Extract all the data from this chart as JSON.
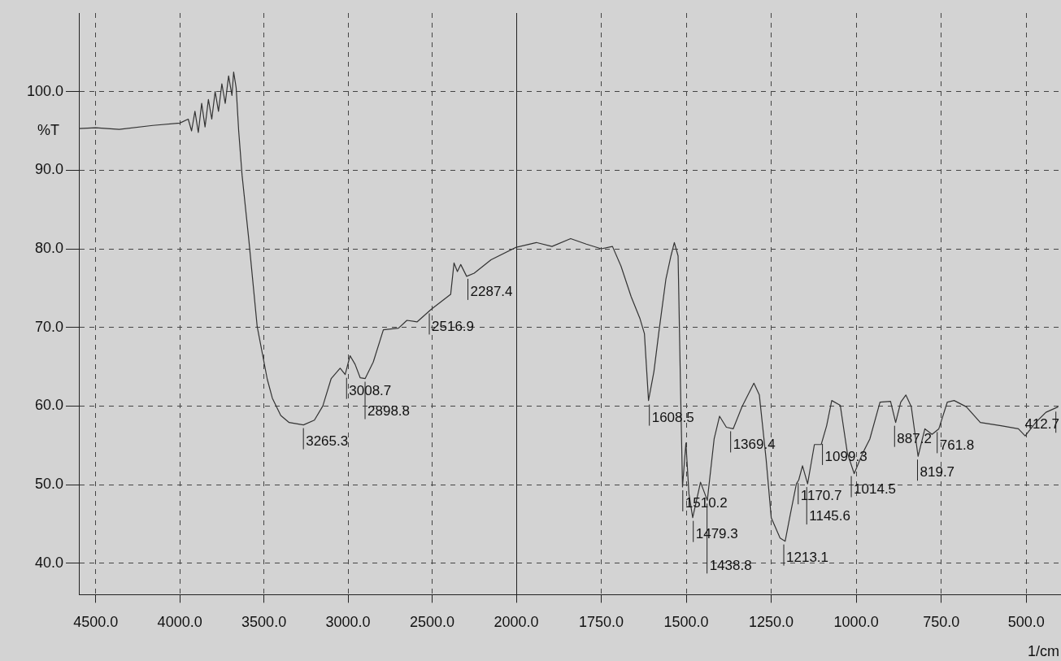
{
  "chart_data": [
    {
      "type": "line",
      "ylabel": "%T",
      "grid": true,
      "legend": false,
      "marker": "none",
      "line_style": "solid",
      "xlim": [
        4600,
        2000
      ],
      "ylim": [
        36,
        110
      ],
      "xticks": [
        {
          "value": 4500,
          "label": "4500.0"
        },
        {
          "value": 4000,
          "label": "4000.0"
        },
        {
          "value": 3500,
          "label": "3500.0"
        },
        {
          "value": 3000,
          "label": "3000.0"
        },
        {
          "value": 2500,
          "label": "2500.0"
        },
        {
          "value": 2000,
          "label": "2000.0"
        }
      ],
      "yticks": [
        {
          "value": 40,
          "label": "40.0"
        },
        {
          "value": 50,
          "label": "50.0"
        },
        {
          "value": 60,
          "label": "60.0"
        },
        {
          "value": 70,
          "label": "70.0"
        },
        {
          "value": 80,
          "label": "80.0"
        },
        {
          "value": 90,
          "label": "90.0"
        },
        {
          "value": 100,
          "label": "100.0"
        }
      ],
      "series": [
        {
          "color": "#333333",
          "x": [
            4600,
            4500,
            4360,
            4160,
            4000,
            3950,
            3930,
            3910,
            3890,
            3870,
            3850,
            3830,
            3810,
            3790,
            3770,
            3750,
            3730,
            3710,
            3690,
            3680,
            3665,
            3650,
            3630,
            3590,
            3540,
            3480,
            3450,
            3400,
            3350,
            3265,
            3200,
            3150,
            3100,
            3047,
            3017,
            2988,
            2958,
            2928,
            2898,
            2850,
            2790,
            2700,
            2650,
            2590,
            2506,
            2390,
            2370,
            2350,
            2330,
            2295,
            2250,
            2150,
            2000
          ],
          "values": [
            95.3,
            95.4,
            95.2,
            95.7,
            96.0,
            96.5,
            95,
            97.5,
            94.8,
            98.5,
            95.5,
            99,
            96.5,
            100,
            97.5,
            101,
            98.5,
            102,
            99.5,
            102.5,
            100.5,
            95,
            89.4,
            81.2,
            70.1,
            63.4,
            61,
            58.8,
            57.9,
            57.6,
            58.2,
            60,
            63.5,
            64.8,
            64,
            66.4,
            65.3,
            63.6,
            63.5,
            65.6,
            69.7,
            69.9,
            70.9,
            70.7,
            72.3,
            74.2,
            78.2,
            77.1,
            78,
            76.5,
            76.9,
            78.6,
            80.2
          ]
        }
      ],
      "annotations": [
        {
          "text": "3265.3",
          "x": 3265.3,
          "y": 57.6
        },
        {
          "text": "3008.7",
          "x": 3008.7,
          "y": 64
        },
        {
          "text": "2898.8",
          "x": 2898.8,
          "y": 63.5
        },
        {
          "text": "2516.9",
          "x": 2516.9,
          "y": 72.2
        },
        {
          "text": "2287.4",
          "x": 2287.4,
          "y": 76.6
        }
      ]
    },
    {
      "type": "line",
      "xlabel": "1/cm",
      "grid": true,
      "legend": false,
      "marker": "none",
      "line_style": "solid",
      "tick_labels": "x",
      "xlim": [
        2000,
        400
      ],
      "ylim": [
        36,
        110
      ],
      "xticks": [
        {
          "value": 1750,
          "label": "1750.0"
        },
        {
          "value": 1500,
          "label": "1500.0"
        },
        {
          "value": 1250,
          "label": "1250.0"
        },
        {
          "value": 1000,
          "label": "1000.0"
        },
        {
          "value": 750,
          "label": "750.0"
        },
        {
          "value": 500,
          "label": "500.0"
        }
      ],
      "yticks": [
        40,
        50,
        60,
        70,
        80,
        90,
        100
      ],
      "series": [
        {
          "color": "#333333",
          "x": [
            2000,
            1941,
            1895,
            1840,
            1794,
            1750,
            1717,
            1692,
            1662,
            1636,
            1623,
            1611,
            1595,
            1580,
            1560,
            1545,
            1535,
            1524,
            1517,
            1511,
            1501,
            1492,
            1481,
            1458,
            1438,
            1418,
            1402,
            1382,
            1362,
            1336,
            1301,
            1285,
            1265,
            1250,
            1224,
            1209,
            1194,
            1176,
            1169,
            1158,
            1143,
            1123,
            1103,
            1087,
            1072,
            1047,
            1026,
            1006,
            981,
            960,
            930,
            899,
            884,
            869,
            854,
            838,
            818,
            798,
            777,
            757,
            732,
            712,
            676,
            635,
            574,
            523,
            503,
            472,
            442,
            406
          ],
          "values": [
            80.2,
            80.8,
            80.3,
            81.3,
            80.6,
            80,
            80.3,
            77.8,
            73.9,
            71.1,
            69.2,
            60.7,
            64.4,
            69.6,
            76.1,
            79.1,
            80.8,
            79.1,
            62.7,
            49.7,
            55.3,
            48.8,
            45.8,
            50.3,
            48,
            55.8,
            58.7,
            57.3,
            57.1,
            59.9,
            62.9,
            61.4,
            53.2,
            45.8,
            43.2,
            42.8,
            46.2,
            50.1,
            50.6,
            52.4,
            50.1,
            55.1,
            55.1,
            57.5,
            60.7,
            60.1,
            54,
            51.4,
            54,
            55.8,
            60.5,
            60.6,
            57.9,
            60.5,
            61.4,
            59.9,
            53.6,
            57.1,
            56.4,
            57.1,
            60.5,
            60.7,
            59.9,
            57.9,
            57.5,
            57.1,
            56.2,
            57.9,
            59.2,
            59.9
          ]
        }
      ],
      "annotations": [
        {
          "text": "1608.5",
          "x": 1608.5,
          "y": 60.6
        },
        {
          "text": "1510.2",
          "x": 1510.2,
          "y": 49.7
        },
        {
          "text": "1479.3",
          "x": 1479.3,
          "y": 45.8
        },
        {
          "text": "1438.8",
          "x": 1438.8,
          "y": 48
        },
        {
          "text": "1369.4",
          "x": 1369.4,
          "y": 57.2
        },
        {
          "text": "1213.1",
          "x": 1213.1,
          "y": 42.8
        },
        {
          "text": "1170.7",
          "x": 1170.7,
          "y": 50.6
        },
        {
          "text": "1145.6",
          "x": 1145.6,
          "y": 50.1
        },
        {
          "text": "1099.3",
          "x": 1099.3,
          "y": 55.6
        },
        {
          "text": "1014.5",
          "x": 1014.5,
          "y": 51.5
        },
        {
          "text": "887.2",
          "x": 887.2,
          "y": 57.9
        },
        {
          "text": "819.7",
          "x": 819.7,
          "y": 53.6
        },
        {
          "text": "761.8",
          "x": 761.8,
          "y": 57.1
        },
        {
          "text": "412.7",
          "x": 412.7,
          "y": 59.7
        }
      ]
    }
  ]
}
